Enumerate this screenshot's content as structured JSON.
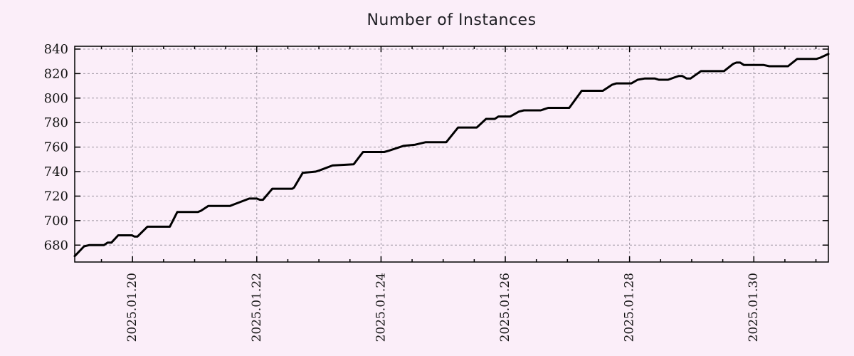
{
  "chart_data": {
    "type": "line",
    "title": "Number of Instances",
    "xlabel": "",
    "ylabel": "",
    "legend": null,
    "grid": "dotted",
    "x_unit": "decimal day of 2025.01",
    "xlim": [
      19.07,
      31.2
    ],
    "ylim": [
      666.2,
      842.3
    ],
    "y_ticks": [
      680,
      700,
      720,
      740,
      760,
      780,
      800,
      820,
      840
    ],
    "x_major_ticks": [
      {
        "value": 20,
        "label": "2025.01.20"
      },
      {
        "value": 22,
        "label": "2025.01.22"
      },
      {
        "value": 24,
        "label": "2025.01.24"
      },
      {
        "value": 26,
        "label": "2025.01.26"
      },
      {
        "value": 28,
        "label": "2025.01.28"
      },
      {
        "value": 30,
        "label": "2025.01.30"
      }
    ],
    "x_minor_tick_step": 0.5,
    "series": [
      {
        "name": "instances",
        "color": "#000000",
        "points": [
          [
            19.07,
            671
          ],
          [
            19.22,
            679
          ],
          [
            19.3,
            680
          ],
          [
            19.54,
            680
          ],
          [
            19.6,
            682
          ],
          [
            19.66,
            682
          ],
          [
            19.77,
            688
          ],
          [
            19.99,
            688
          ],
          [
            20.03,
            687
          ],
          [
            20.08,
            687
          ],
          [
            20.24,
            695
          ],
          [
            20.6,
            695
          ],
          [
            20.72,
            707
          ],
          [
            21.05,
            707
          ],
          [
            21.1,
            708
          ],
          [
            21.22,
            712
          ],
          [
            21.57,
            712
          ],
          [
            21.62,
            713
          ],
          [
            21.88,
            718
          ],
          [
            22.0,
            718
          ],
          [
            22.05,
            717
          ],
          [
            22.1,
            717
          ],
          [
            22.25,
            726
          ],
          [
            22.57,
            726
          ],
          [
            22.6,
            727
          ],
          [
            22.74,
            739
          ],
          [
            22.95,
            740
          ],
          [
            23.01,
            741
          ],
          [
            23.22,
            745
          ],
          [
            23.56,
            746
          ],
          [
            23.71,
            756
          ],
          [
            24.05,
            756
          ],
          [
            24.12,
            757
          ],
          [
            24.36,
            761
          ],
          [
            24.55,
            762
          ],
          [
            24.72,
            764
          ],
          [
            25.05,
            764
          ],
          [
            25.24,
            776
          ],
          [
            25.54,
            776
          ],
          [
            25.69,
            783
          ],
          [
            25.83,
            783
          ],
          [
            25.89,
            785
          ],
          [
            26.08,
            785
          ],
          [
            26.22,
            789
          ],
          [
            26.3,
            790
          ],
          [
            26.57,
            790
          ],
          [
            26.69,
            792
          ],
          [
            27.03,
            792
          ],
          [
            27.23,
            806
          ],
          [
            27.57,
            806
          ],
          [
            27.72,
            811
          ],
          [
            27.79,
            812
          ],
          [
            28.03,
            812
          ],
          [
            28.13,
            815
          ],
          [
            28.24,
            816
          ],
          [
            28.41,
            816
          ],
          [
            28.47,
            815
          ],
          [
            28.62,
            815
          ],
          [
            28.73,
            817
          ],
          [
            28.79,
            818
          ],
          [
            28.85,
            818
          ],
          [
            28.92,
            816
          ],
          [
            28.98,
            816
          ],
          [
            29.15,
            822
          ],
          [
            29.52,
            822
          ],
          [
            29.67,
            828
          ],
          [
            29.72,
            829
          ],
          [
            29.78,
            829
          ],
          [
            29.84,
            827
          ],
          [
            30.16,
            827
          ],
          [
            30.25,
            826
          ],
          [
            30.55,
            826
          ],
          [
            30.7,
            832
          ],
          [
            31.01,
            832
          ],
          [
            31.07,
            833
          ],
          [
            31.2,
            836
          ]
        ]
      }
    ],
    "style": {
      "background_color": "#fbeef9",
      "line_color": "#000000",
      "grid_color": "#9e96a2",
      "axis_color": "#000000",
      "text_color": "#141414"
    }
  }
}
